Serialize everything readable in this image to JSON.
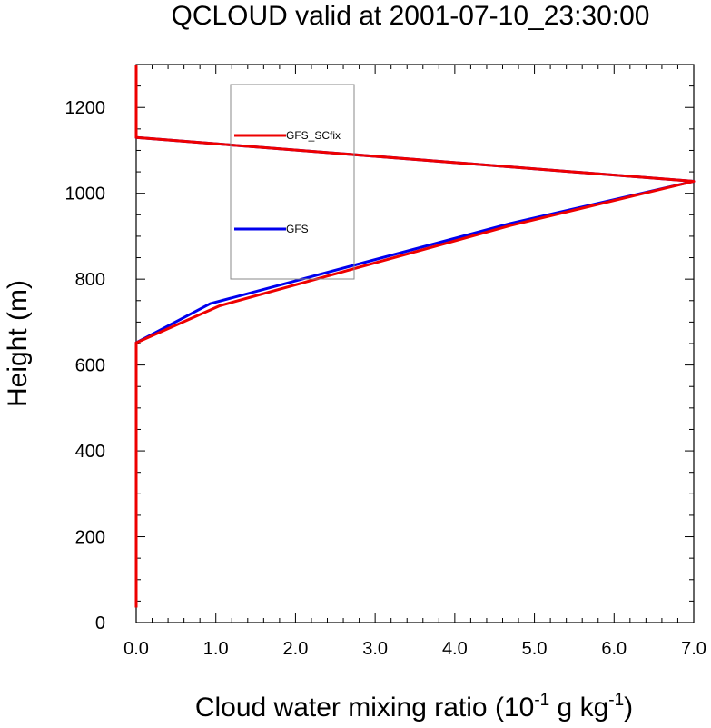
{
  "chart_data": {
    "type": "line",
    "title": "QCLOUD valid at 2001-07-10_23:30:00",
    "xlabel": "Cloud water mixing ratio (10^-1 g kg^-1)",
    "xlabel_parts": {
      "main": "Cloud water mixing ratio (10",
      "sup1": "-1",
      "mid": " g kg",
      "sup2": "-1",
      "end": ")"
    },
    "ylabel": "Height (m)",
    "xlim": [
      0,
      7
    ],
    "ylim": [
      0,
      1300
    ],
    "x_ticks": [
      "0.0",
      "1.0",
      "2.0",
      "3.0",
      "4.0",
      "5.0",
      "6.0",
      "7.0"
    ],
    "y_ticks": [
      "0",
      "200",
      "400",
      "600",
      "800",
      "1000",
      "1200"
    ],
    "legend_position": "upper-left inside",
    "series": [
      {
        "name": "GFS",
        "color": "#0000ee",
        "x": [
          0.0,
          0.0,
          0.0,
          0.93,
          4.7,
          7.0,
          0.0,
          0.0
        ],
        "y": [
          35,
          400,
          652,
          743,
          930,
          1028,
          1130,
          1300
        ]
      },
      {
        "name": "GFS_SCfix",
        "color": "#ee0000",
        "x": [
          0.0,
          0.0,
          0.0,
          1.05,
          4.7,
          7.0,
          0.0,
          0.0
        ],
        "y": [
          35,
          400,
          652,
          738,
          925,
          1028,
          1130,
          1300
        ]
      }
    ],
    "legend_order": [
      "GFS_SCfix",
      "GFS"
    ]
  }
}
